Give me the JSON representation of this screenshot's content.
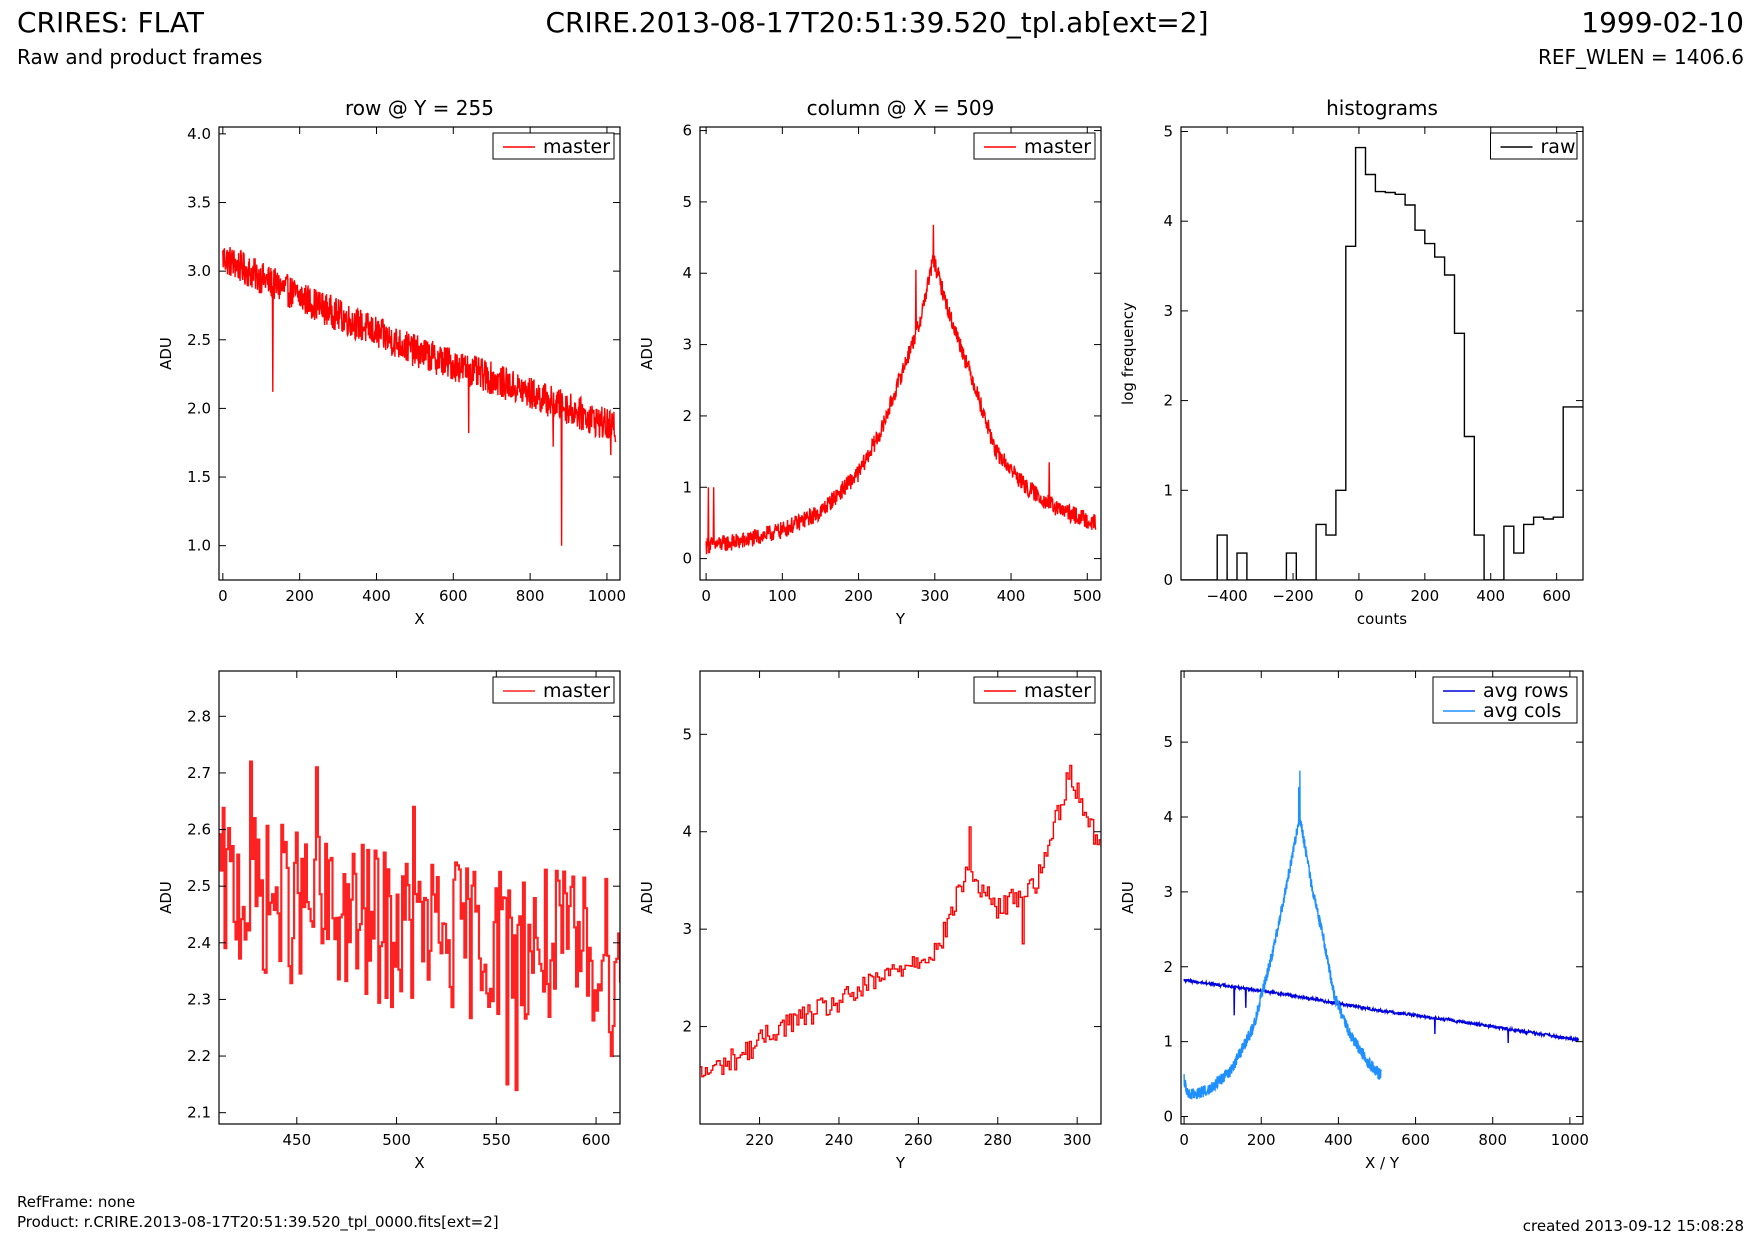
{
  "header": {
    "title_left": "CRIRES: FLAT",
    "subtitle_left": "Raw and product frames",
    "title_center": "CRIRE.2013-08-17T20:51:39.520_tpl.ab[ext=2]",
    "title_right": "1999-02-10",
    "subtitle_right": "REF_WLEN = 1406.6"
  },
  "footer": {
    "refframe": "RefFrame: none",
    "product": "Product: r.CRIRE.2013-08-17T20:51:39.520_tpl_0000.fits[ext=2]",
    "created": "created 2013-09-12 15:08:28"
  },
  "colors": {
    "master": "#ff0000",
    "raw": "#000000",
    "avg_rows": "#0000dd",
    "avg_cols": "#1e90ff"
  },
  "chart_data": [
    {
      "id": "row",
      "type": "line",
      "title": "row @ Y = 255",
      "xlabel": "X",
      "ylabel": "ADU",
      "xlim": [
        -10,
        1034
      ],
      "ylim": [
        0.75,
        4.05
      ],
      "xticks": [
        0,
        200,
        400,
        600,
        800,
        1000
      ],
      "yticks": [
        1.0,
        1.5,
        2.0,
        2.5,
        3.0,
        3.5,
        4.0
      ],
      "yticks_labels": [
        "1.0",
        "1.5",
        "2.0",
        "2.5",
        "3.0",
        "3.5",
        "4.0"
      ],
      "legend": "top-right",
      "series": [
        {
          "name": "master",
          "color": "#ff0000",
          "x_range": [
            0,
            1023
          ],
          "trend": [
            [
              0,
              3.1
            ],
            [
              100,
              2.95
            ],
            [
              300,
              2.68
            ],
            [
              500,
              2.42
            ],
            [
              700,
              2.22
            ],
            [
              900,
              2.0
            ],
            [
              1023,
              1.85
            ]
          ],
          "noise": 0.12,
          "spikes": [
            [
              130,
              2.12
            ],
            [
              640,
              1.82
            ],
            [
              860,
              1.72
            ],
            [
              882,
              1.0
            ],
            [
              1010,
              1.66
            ]
          ]
        }
      ]
    },
    {
      "id": "column",
      "type": "line",
      "title": "column @ X = 509",
      "xlabel": "Y",
      "ylabel": "ADU",
      "xlim": [
        -8,
        518
      ],
      "ylim": [
        -0.3,
        6.05
      ],
      "xticks": [
        0,
        100,
        200,
        300,
        400,
        500
      ],
      "yticks": [
        0,
        1,
        2,
        3,
        4,
        5,
        6
      ],
      "legend": "top-right",
      "series": [
        {
          "name": "master",
          "color": "#ff0000",
          "x_range": [
            0,
            511
          ],
          "trend": [
            [
              0,
              0.18
            ],
            [
              50,
              0.25
            ],
            [
              100,
              0.4
            ],
            [
              150,
              0.65
            ],
            [
              200,
              1.2
            ],
            [
              230,
              1.8
            ],
            [
              260,
              2.7
            ],
            [
              280,
              3.3
            ],
            [
              298,
              4.2
            ],
            [
              320,
              3.4
            ],
            [
              350,
              2.5
            ],
            [
              380,
              1.5
            ],
            [
              420,
              1.0
            ],
            [
              460,
              0.7
            ],
            [
              511,
              0.5
            ]
          ],
          "noise": 0.12,
          "spikes": [
            [
              3,
              1.0
            ],
            [
              10,
              1.0
            ],
            [
              275,
              4.05
            ],
            [
              298,
              4.68
            ],
            [
              450,
              1.35
            ]
          ]
        }
      ]
    },
    {
      "id": "histogram",
      "type": "step",
      "title": "histograms",
      "xlabel": "counts",
      "ylabel": "log frequency",
      "xlim": [
        -540,
        680
      ],
      "ylim": [
        0,
        5.05
      ],
      "xticks": [
        -400,
        -200,
        0,
        200,
        400,
        600
      ],
      "xticks_labels": [
        "−400",
        "−200",
        "0",
        "200",
        "400",
        "600"
      ],
      "yticks": [
        0,
        1,
        2,
        3,
        4,
        5
      ],
      "legend": "top-right",
      "series": [
        {
          "name": "raw",
          "color": "#000000",
          "edges": [
            -540,
            -430,
            -400,
            -370,
            -340,
            -310,
            -280,
            -250,
            -220,
            -190,
            -160,
            -130,
            -100,
            -70,
            -40,
            -10,
            20,
            50,
            80,
            110,
            140,
            170,
            200,
            230,
            260,
            290,
            320,
            350,
            380,
            410,
            440,
            470,
            500,
            530,
            560,
            590,
            620,
            650,
            680
          ],
          "counts": [
            0,
            0.5,
            0,
            0.3,
            0,
            0,
            0,
            0,
            0.3,
            0,
            0,
            0.62,
            0.5,
            1.0,
            3.72,
            4.82,
            4.52,
            4.33,
            4.32,
            4.3,
            4.18,
            3.9,
            3.75,
            3.6,
            3.4,
            2.75,
            1.6,
            0.5,
            0,
            0,
            0.6,
            0.3,
            0.62,
            0.7,
            0.68,
            0.7,
            1.93,
            1.93
          ]
        }
      ]
    },
    {
      "id": "row-zoom",
      "type": "line",
      "title": "",
      "xlabel": "X",
      "ylabel": "ADU",
      "xlim": [
        411,
        612
      ],
      "ylim": [
        2.08,
        2.88
      ],
      "xticks": [
        450,
        500,
        550,
        600
      ],
      "yticks": [
        2.1,
        2.2,
        2.3,
        2.4,
        2.5,
        2.6,
        2.7,
        2.8
      ],
      "legend": "top-right",
      "series": [
        {
          "name": "master",
          "color": "#ff2222",
          "x_range": [
            411,
            612
          ],
          "trend": [
            [
              411,
              2.5
            ],
            [
              500,
              2.42
            ],
            [
              612,
              2.38
            ]
          ],
          "noise": 0.14,
          "step": true,
          "spikes": [
            [
              427,
              2.72
            ],
            [
              460,
              2.71
            ],
            [
              508,
              2.64
            ],
            [
              555,
              2.15
            ],
            [
              560,
              2.14
            ],
            [
              607,
              2.2
            ]
          ]
        }
      ]
    },
    {
      "id": "column-zoom",
      "type": "line",
      "title": "",
      "xlabel": "Y",
      "ylabel": "ADU",
      "xlim": [
        205,
        306
      ],
      "ylim": [
        1.0,
        5.65
      ],
      "xticks": [
        220,
        240,
        260,
        280,
        300
      ],
      "yticks": [
        2,
        3,
        4,
        5
      ],
      "legend": "top-right",
      "series": [
        {
          "name": "master",
          "color": "#ff0000",
          "x_range": [
            205,
            306
          ],
          "trend": [
            [
              205,
              1.5
            ],
            [
              215,
              1.7
            ],
            [
              225,
              2.0
            ],
            [
              240,
              2.25
            ],
            [
              255,
              2.6
            ],
            [
              265,
              2.8
            ],
            [
              272,
              3.6
            ],
            [
              280,
              3.2
            ],
            [
              290,
              3.5
            ],
            [
              298,
              4.6
            ],
            [
              306,
              3.8
            ]
          ],
          "noise": 0.12,
          "step": true,
          "spikes": [
            [
              273,
              4.05
            ],
            [
              298,
              4.68
            ],
            [
              286,
              2.85
            ]
          ]
        }
      ]
    },
    {
      "id": "averages",
      "type": "line",
      "title": "",
      "xlabel": "X / Y",
      "ylabel": "ADU",
      "xlim": [
        -8,
        1034
      ],
      "ylim": [
        -0.1,
        5.95
      ],
      "xticks": [
        0,
        200,
        400,
        600,
        800,
        1000
      ],
      "yticks": [
        0,
        1,
        2,
        3,
        4,
        5
      ],
      "legend": "top-right",
      "series": [
        {
          "name": "avg rows",
          "color": "#0000dd",
          "x_range": [
            0,
            1023
          ],
          "trend": [
            [
              0,
              1.82
            ],
            [
              150,
              1.72
            ],
            [
              300,
              1.6
            ],
            [
              500,
              1.42
            ],
            [
              700,
              1.28
            ],
            [
              900,
              1.12
            ],
            [
              1023,
              1.02
            ]
          ],
          "noise": 0.02,
          "spikes": [
            [
              130,
              1.35
            ],
            [
              160,
              1.45
            ],
            [
              650,
              1.1
            ],
            [
              840,
              0.98
            ]
          ]
        },
        {
          "name": "avg cols",
          "color": "#1e90ff",
          "x_range": [
            0,
            511
          ],
          "trend": [
            [
              0,
              0.5
            ],
            [
              10,
              0.28
            ],
            [
              60,
              0.35
            ],
            [
              120,
              0.6
            ],
            [
              180,
              1.2
            ],
            [
              230,
              2.2
            ],
            [
              270,
              3.2
            ],
            [
              300,
              4.0
            ],
            [
              330,
              3.1
            ],
            [
              360,
              2.4
            ],
            [
              390,
              1.6
            ],
            [
              430,
              1.1
            ],
            [
              480,
              0.7
            ],
            [
              511,
              0.55
            ]
          ],
          "noise": 0.08,
          "spikes": [
            [
              300,
              4.62
            ],
            [
              297,
              4.4
            ]
          ]
        }
      ]
    }
  ]
}
